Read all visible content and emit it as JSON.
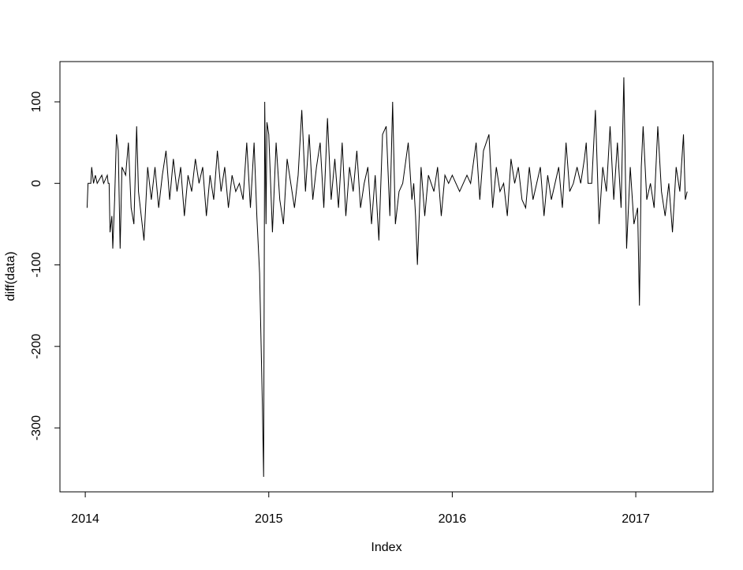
{
  "chart_data": {
    "type": "line",
    "xlabel": "Index",
    "ylabel": "diff(data)",
    "color": "#000000",
    "xlim": [
      2013.862,
      2017.421
    ],
    "xticks": [
      2014,
      2015,
      2016,
      2017
    ],
    "ylim": [
      -378.4,
      149.4
    ],
    "yticks": [
      -300,
      -200,
      -100,
      0,
      100
    ],
    "x": [
      2014.01,
      2014.015,
      2014.03,
      2014.035,
      2014.045,
      2014.055,
      2014.065,
      2014.09,
      2014.1,
      2014.12,
      2014.125,
      2014.13,
      2014.135,
      2014.145,
      2014.15,
      2014.16,
      2014.17,
      2014.18,
      2014.19,
      2014.2,
      2014.22,
      2014.235,
      2014.25,
      2014.265,
      2014.28,
      2014.29,
      2014.3,
      2014.32,
      2014.34,
      2014.36,
      2014.38,
      2014.4,
      2014.42,
      2014.44,
      2014.46,
      2014.48,
      2014.5,
      2014.52,
      2014.54,
      2014.56,
      2014.58,
      2014.6,
      2014.62,
      2014.64,
      2014.66,
      2014.68,
      2014.7,
      2014.72,
      2014.74,
      2014.76,
      2014.78,
      2014.8,
      2014.82,
      2014.84,
      2014.86,
      2014.88,
      2014.9,
      2014.92,
      2014.935,
      2014.95,
      2014.965,
      2014.972,
      2014.978,
      2014.985,
      2014.99,
      2015.0,
      2015.02,
      2015.04,
      2015.06,
      2015.08,
      2015.1,
      2015.12,
      2015.14,
      2015.16,
      2015.18,
      2015.2,
      2015.22,
      2015.24,
      2015.26,
      2015.28,
      2015.3,
      2015.32,
      2015.34,
      2015.36,
      2015.38,
      2015.4,
      2015.42,
      2015.44,
      2015.46,
      2015.48,
      2015.5,
      2015.52,
      2015.54,
      2015.56,
      2015.58,
      2015.6,
      2015.62,
      2015.64,
      2015.66,
      2015.675,
      2015.69,
      2015.71,
      2015.73,
      2015.76,
      2015.78,
      2015.79,
      2015.8,
      2015.81,
      2015.83,
      2015.85,
      2015.87,
      2015.9,
      2015.92,
      2015.94,
      2015.96,
      2015.98,
      2016.0,
      2016.02,
      2016.04,
      2016.06,
      2016.08,
      2016.1,
      2016.13,
      2016.15,
      2016.17,
      2016.2,
      2016.22,
      2016.24,
      2016.26,
      2016.28,
      2016.3,
      2016.32,
      2016.34,
      2016.36,
      2016.38,
      2016.4,
      2016.42,
      2016.44,
      2016.46,
      2016.48,
      2016.5,
      2016.52,
      2016.54,
      2016.56,
      2016.58,
      2016.6,
      2016.62,
      2016.64,
      2016.66,
      2016.68,
      2016.7,
      2016.72,
      2016.73,
      2016.74,
      2016.76,
      2016.78,
      2016.8,
      2016.82,
      2016.84,
      2016.86,
      2016.88,
      2016.9,
      2016.92,
      2016.935,
      2016.95,
      2016.97,
      2016.99,
      2017.01,
      2017.02,
      2017.03,
      2017.04,
      2017.06,
      2017.08,
      2017.1,
      2017.12,
      2017.14,
      2017.16,
      2017.18,
      2017.2,
      2017.22,
      2017.24,
      2017.26,
      2017.27,
      2017.28
    ],
    "values": [
      -30,
      0,
      0,
      20,
      0,
      10,
      0,
      10,
      0,
      10,
      0,
      0,
      -60,
      -40,
      -80,
      -20,
      60,
      40,
      -80,
      20,
      10,
      50,
      -30,
      -50,
      70,
      -10,
      -30,
      -70,
      20,
      -20,
      20,
      -30,
      10,
      40,
      -20,
      30,
      -10,
      20,
      -40,
      10,
      -10,
      30,
      0,
      20,
      -40,
      10,
      -20,
      40,
      -10,
      20,
      -30,
      10,
      -10,
      0,
      -20,
      50,
      -30,
      50,
      -40,
      -110,
      -270,
      -360,
      100,
      -50,
      75,
      60,
      -60,
      50,
      -20,
      -50,
      30,
      0,
      -30,
      10,
      90,
      -10,
      60,
      -20,
      20,
      50,
      -30,
      80,
      -20,
      30,
      -30,
      50,
      -40,
      20,
      -10,
      40,
      -30,
      0,
      20,
      -50,
      10,
      -70,
      60,
      70,
      -40,
      100,
      -50,
      -10,
      0,
      50,
      -20,
      0,
      -40,
      -100,
      20,
      -40,
      10,
      -10,
      20,
      -40,
      10,
      0,
      10,
      0,
      -10,
      0,
      10,
      0,
      50,
      -20,
      40,
      60,
      -30,
      20,
      -10,
      0,
      -40,
      30,
      0,
      20,
      -20,
      -30,
      20,
      -20,
      0,
      20,
      -40,
      10,
      -20,
      0,
      20,
      -30,
      50,
      -10,
      0,
      20,
      0,
      30,
      50,
      0,
      0,
      90,
      -50,
      20,
      -10,
      70,
      -20,
      50,
      -30,
      130,
      -80,
      20,
      -50,
      -30,
      -150,
      20,
      70,
      -20,
      0,
      -30,
      70,
      -10,
      -40,
      0,
      -60,
      20,
      -10,
      60,
      -20,
      -10
    ]
  }
}
